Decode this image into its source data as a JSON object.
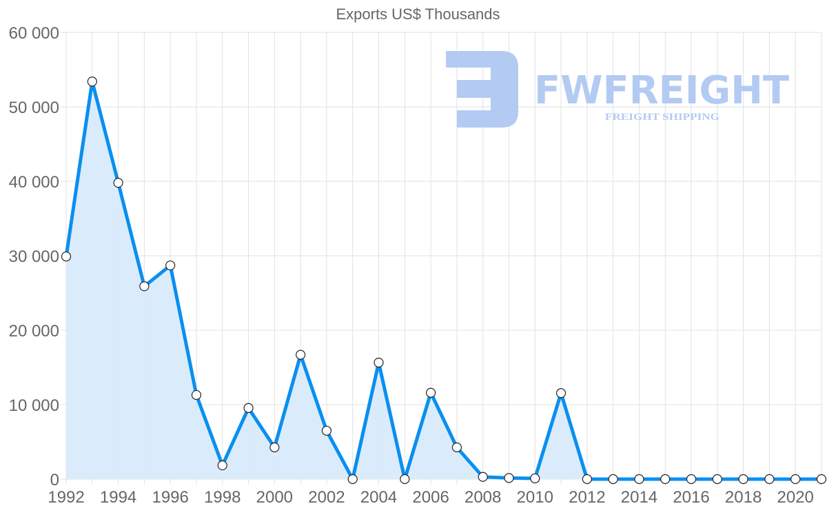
{
  "chart_data": {
    "type": "area",
    "title": "Exports US$ Thousands",
    "xlabel": "",
    "ylabel": "",
    "x": [
      1992,
      1993,
      1994,
      1995,
      1996,
      1997,
      1998,
      1999,
      2000,
      2001,
      2002,
      2003,
      2004,
      2005,
      2006,
      2007,
      2008,
      2009,
      2010,
      2011,
      2012,
      2013,
      2014,
      2015,
      2016,
      2017,
      2018,
      2019,
      2020,
      2021
    ],
    "series": [
      {
        "name": "Exports US$ Thousands",
        "color": "#0a8ff0",
        "fill": "#d8ebfb",
        "values": [
          29900,
          53400,
          39800,
          25900,
          28700,
          11300,
          1850,
          9550,
          4260,
          16700,
          6500,
          0,
          15650,
          0,
          11600,
          4260,
          300,
          150,
          100,
          11550,
          0,
          0,
          0,
          0,
          0,
          0,
          0,
          0,
          0,
          0
        ]
      }
    ],
    "ylim": [
      0,
      60000
    ],
    "yticks": [
      "0",
      "10 000",
      "20 000",
      "30 000",
      "40 000",
      "50 000",
      "60 000"
    ],
    "xticks": [
      "1992",
      "1994",
      "1996",
      "1998",
      "2000",
      "2002",
      "2004",
      "2006",
      "2008",
      "2010",
      "2012",
      "2014",
      "2016",
      "2018",
      "2020"
    ],
    "grid": true,
    "legend": "none"
  },
  "watermark": {
    "brand": "FWFREIGHT",
    "tagline": "FREIGHT SHIPPING",
    "color": "#b3cbf2"
  }
}
